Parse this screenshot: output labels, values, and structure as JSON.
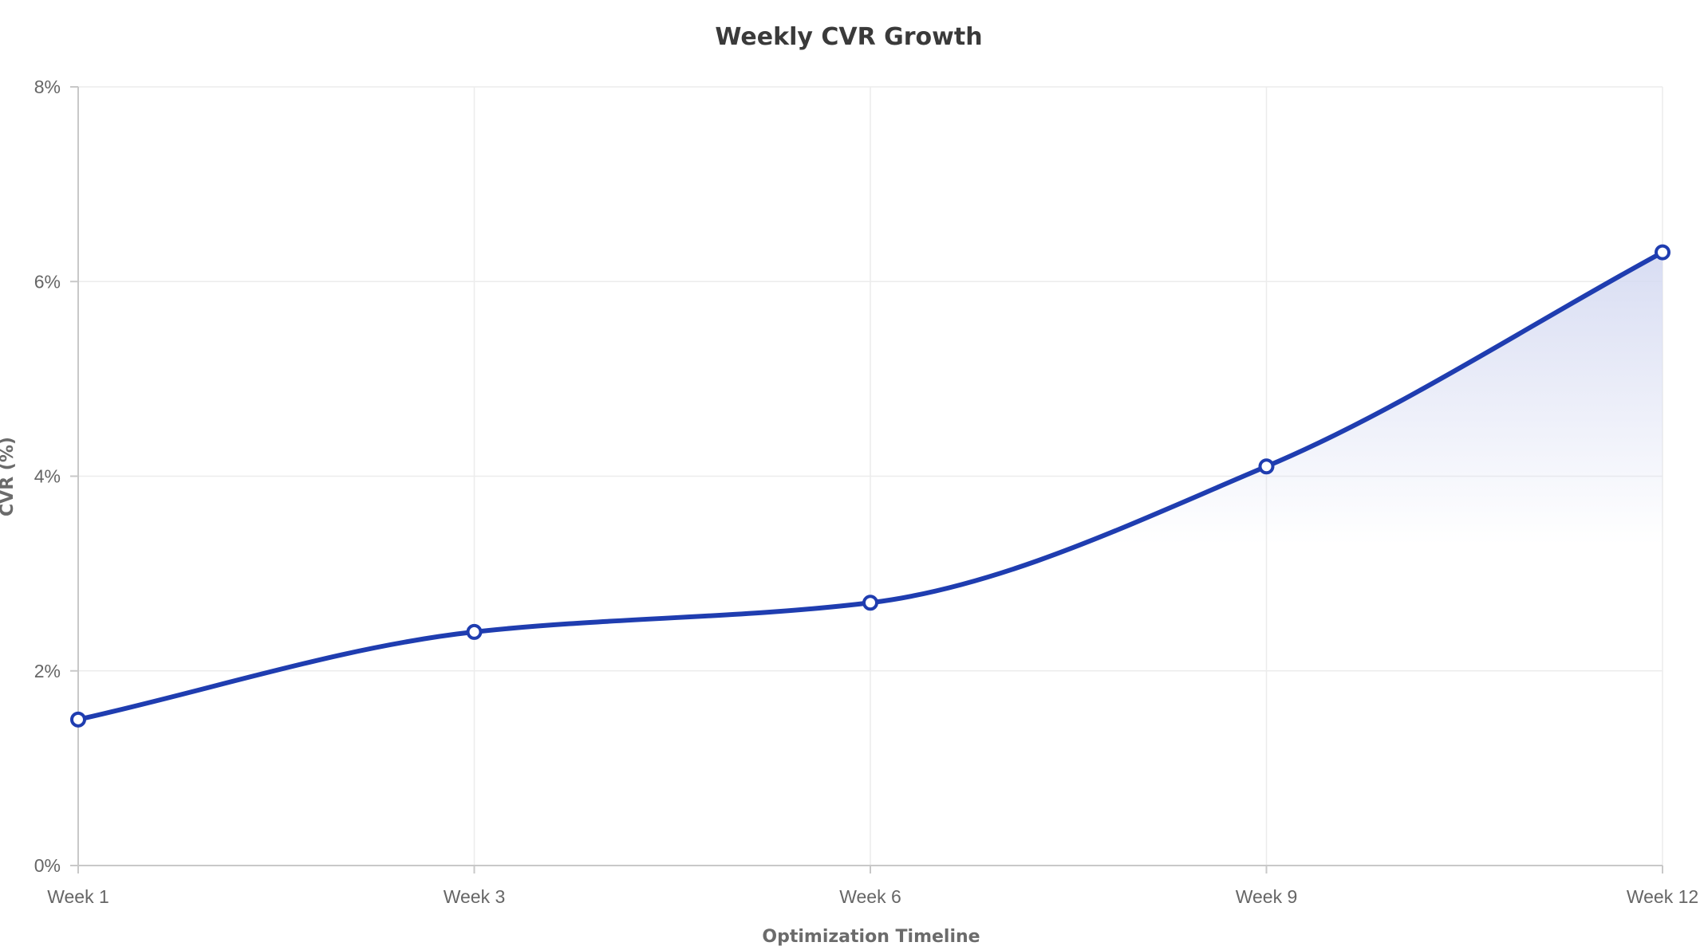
{
  "chart_data": {
    "type": "line",
    "title": "Weekly CVR Growth",
    "xlabel": "Optimization Timeline",
    "ylabel": "CVR (%)",
    "categories": [
      "Week 1",
      "Week 3",
      "Week 6",
      "Week 9",
      "Week 12"
    ],
    "series": [
      {
        "values": [
          1.5,
          2.4,
          2.7,
          4.1,
          6.3
        ],
        "color": "#1f3db0"
      }
    ],
    "ylim": [
      0,
      8
    ],
    "yticks": [
      0,
      2,
      4,
      6,
      8
    ],
    "ytick_labels": [
      "0%",
      "2%",
      "4%",
      "6%",
      "8%"
    ],
    "grid": true,
    "legend": "none",
    "area_fill_color": "#d6dbf2"
  }
}
